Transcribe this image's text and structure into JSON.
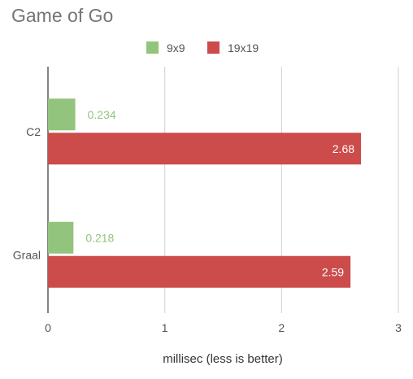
{
  "colors": {
    "series_9x9": "#93c47d",
    "series_19x19": "#cc4b4b",
    "grid": "#d0d0d0",
    "axis": "#333333",
    "text": "#555555"
  },
  "chart_data": {
    "type": "bar",
    "orientation": "horizontal",
    "title": "Game of Go",
    "xlabel": "millisec (less is better)",
    "ylabel": "",
    "categories": [
      "C2",
      "Graal"
    ],
    "series": [
      {
        "name": "9x9",
        "values": [
          0.234,
          0.218
        ],
        "value_labels": [
          "0.234",
          "0.218"
        ],
        "label_position": "outside"
      },
      {
        "name": "19x19",
        "values": [
          2.68,
          2.59
        ],
        "value_labels": [
          "2.68",
          "2.59"
        ],
        "label_position": "inside-end"
      }
    ],
    "xlim": [
      0,
      3
    ],
    "xticks": [
      "0",
      "1",
      "2",
      "3"
    ],
    "grid": true,
    "legend": "top"
  }
}
